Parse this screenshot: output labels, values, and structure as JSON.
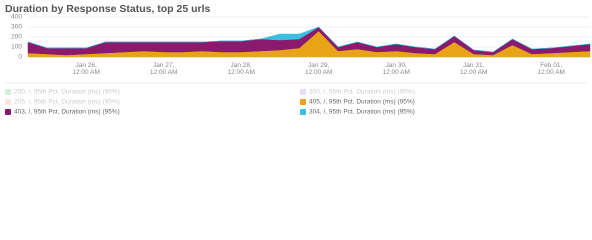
{
  "chart_data": {
    "type": "stacked-area",
    "title": "Duration by Response Status, top 25 urls",
    "categories": [
      null,
      null,
      null,
      "Jan 26, 12:00 AM",
      null,
      null,
      null,
      "Jan 27, 12:00 AM",
      null,
      null,
      null,
      "Jan 28, 12:00 AM",
      null,
      null,
      null,
      "Jan 29, 12:00 AM",
      null,
      null,
      null,
      "Jan 30, 12:00 AM",
      null,
      null,
      null,
      "Jan 31, 12:00 AM",
      null,
      null,
      null,
      "Feb 01, 12:00 AM",
      null,
      null
    ],
    "series": [
      {
        "name": "200, /, 95th Pct. Duration (ms) (95%)",
        "color": "#8fd18f",
        "hidden": true
      },
      {
        "name": "300, /, 95th Pct. Duration (ms) (95%)",
        "color": "#b9a3d6",
        "hidden": true
      },
      {
        "name": "205, /, 95th Pct. Duration (ms) (95%)",
        "color": "#f2b38a",
        "hidden": true
      },
      {
        "name": "405, /, 95th Pct. Duration (ms) (95%)",
        "color": "#e8a317",
        "values": [
          40,
          30,
          20,
          30,
          40,
          50,
          60,
          50,
          50,
          60,
          50,
          50,
          60,
          70,
          90,
          260,
          60,
          80,
          50,
          60,
          40,
          30,
          150,
          30,
          20,
          120,
          30,
          40,
          50,
          60
        ]
      },
      {
        "name": "403, /, 95th Pct. Duration (ms) (95%)",
        "color": "#8a1a6e",
        "values": [
          110,
          60,
          70,
          60,
          110,
          100,
          90,
          100,
          100,
          90,
          110,
          110,
          120,
          100,
          90,
          40,
          40,
          70,
          50,
          70,
          60,
          50,
          60,
          40,
          30,
          60,
          50,
          50,
          60,
          70
        ]
      },
      {
        "name": "304, /, 95th Pct. Duration (ms) (95%)",
        "color": "#3bbfe0",
        "values": [
          0,
          0,
          0,
          0,
          0,
          0,
          0,
          0,
          0,
          0,
          0,
          0,
          0,
          60,
          50,
          0,
          0,
          0,
          0,
          0,
          0,
          0,
          0,
          0,
          0,
          0,
          0,
          0,
          0,
          0
        ]
      }
    ],
    "ylim": [
      0,
      400
    ],
    "yticks": [
      0,
      100,
      200,
      300,
      400
    ],
    "grid": true
  }
}
